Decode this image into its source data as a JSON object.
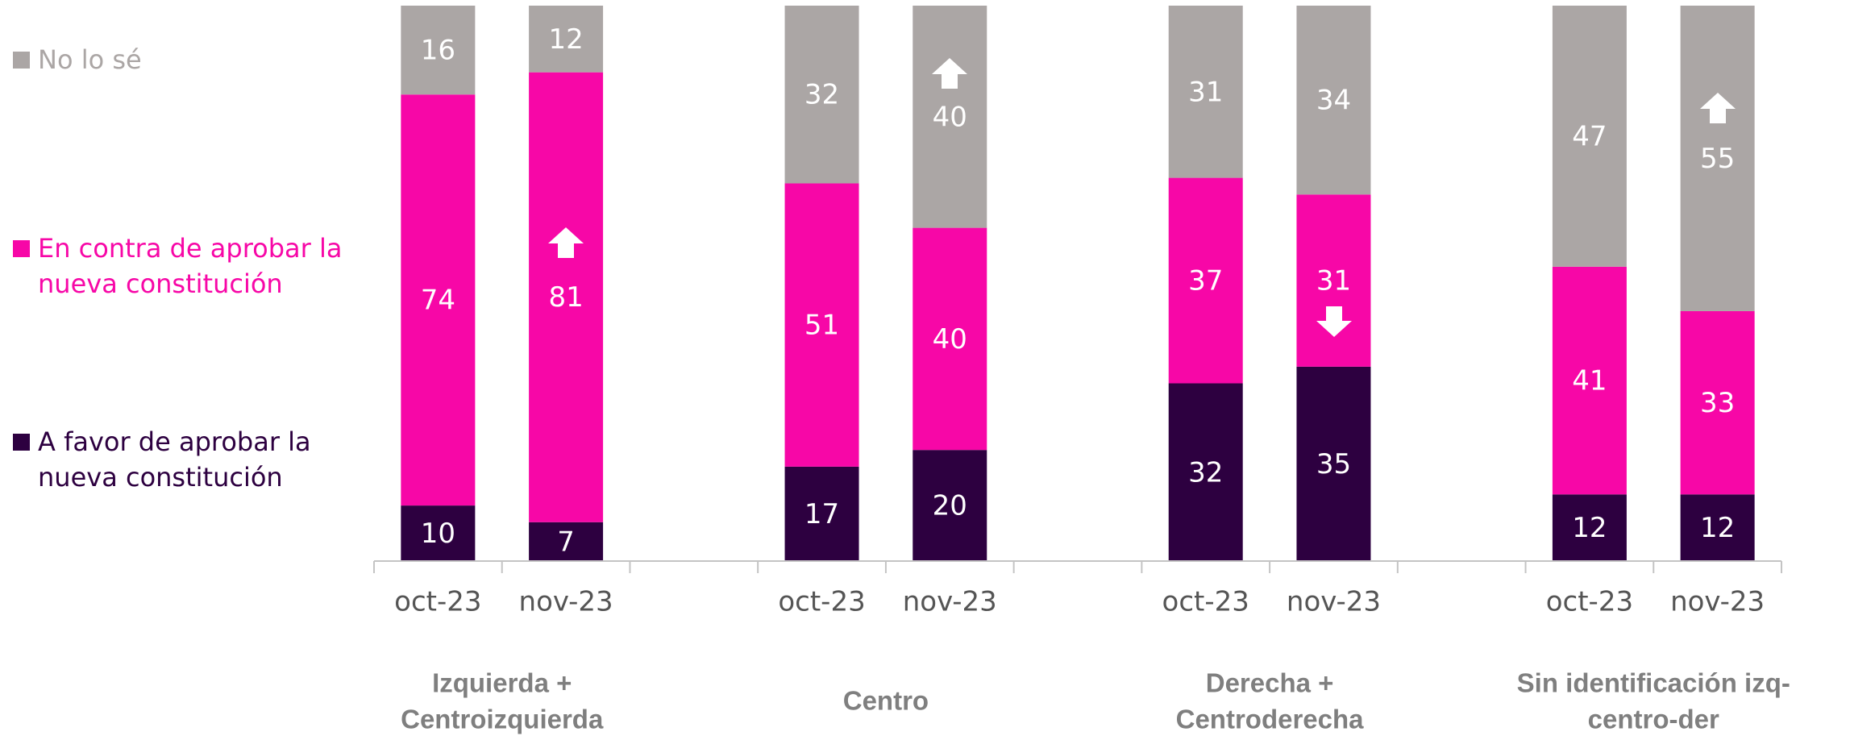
{
  "chart_data": {
    "type": "stacked_bar",
    "categories": [
      "oct-23",
      "nov-23",
      "oct-23",
      "nov-23",
      "oct-23",
      "nov-23",
      "oct-23",
      "nov-23"
    ],
    "groups": [
      {
        "lines": [
          "Izquierda +",
          "Centroizquierda"
        ]
      },
      {
        "lines": [
          "Centro"
        ]
      },
      {
        "lines": [
          "Derecha +",
          "Centroderecha"
        ]
      },
      {
        "lines": [
          "Sin identificación izq-",
          "centro-der"
        ]
      }
    ],
    "series": [
      {
        "name": "A favor de aprobar la nueva constitución",
        "color": "#2d0040",
        "values": [
          10,
          7,
          17,
          20,
          32,
          35,
          12,
          12
        ]
      },
      {
        "name": "En contra de aprobar la nueva constitución",
        "color": "#f707a7",
        "values": [
          74,
          81,
          51,
          40,
          37,
          31,
          41,
          33
        ]
      },
      {
        "name": "No lo sé",
        "color": "#aba6a5",
        "values": [
          16,
          12,
          32,
          40,
          31,
          34,
          47,
          55
        ]
      }
    ],
    "ylim": [
      0,
      100
    ]
  }
}
